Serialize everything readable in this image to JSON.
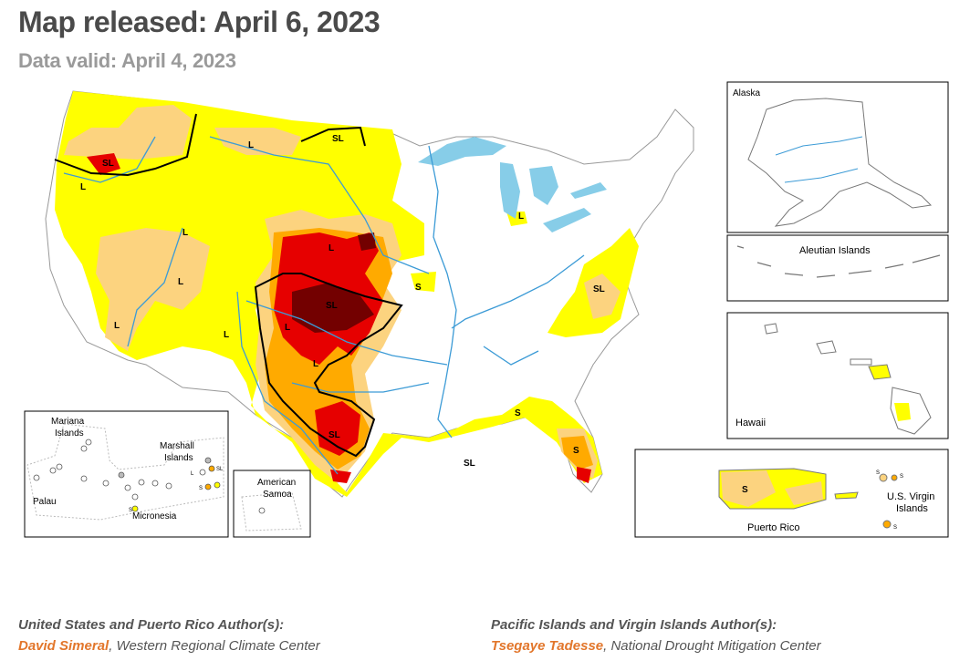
{
  "header": {
    "title": "Map released: April 6, 2023",
    "subtitle": "Data valid: April 4, 2023"
  },
  "colors": {
    "D0": "#ffff00",
    "D1": "#fcd37f",
    "D2": "#ffaa00",
    "D3": "#e60000",
    "D4": "#730000",
    "water": "#87cde8",
    "river": "#3c9bd6",
    "border": "#bbbbbb",
    "author_name": "#e2762b"
  },
  "impact_labels": [
    "SL",
    "L",
    "L",
    "L",
    "L",
    "L",
    "L",
    "L",
    "SL",
    "L",
    "S",
    "SL",
    "SL",
    "L",
    "S",
    "SL",
    "S",
    "L",
    "SL",
    "S",
    "S",
    "S",
    "S",
    "SL",
    "L",
    "S",
    "S"
  ],
  "insets": {
    "alaska": "Alaska",
    "aleutian": "Aleutian Islands",
    "hawaii": "Hawaii",
    "puerto_rico": "Puerto Rico",
    "virgin_islands_1": "U.S. Virgin",
    "virgin_islands_2": "Islands",
    "mariana_1": "Mariana",
    "mariana_2": "Islands",
    "marshall_1": "Marshall",
    "marshall_2": "Islands",
    "palau": "Palau",
    "micronesia": "Micronesia",
    "samoa_1": "American",
    "samoa_2": "Samoa"
  },
  "credits": {
    "left_heading": "United States and Puerto Rico Author(s):",
    "left_name": "David Simeral",
    "left_org": ", Western Regional Climate Center",
    "right_heading": "Pacific Islands and Virgin Islands Author(s):",
    "right_name": "Tsegaye Tadesse",
    "right_org": ", National Drought Mitigation Center"
  }
}
